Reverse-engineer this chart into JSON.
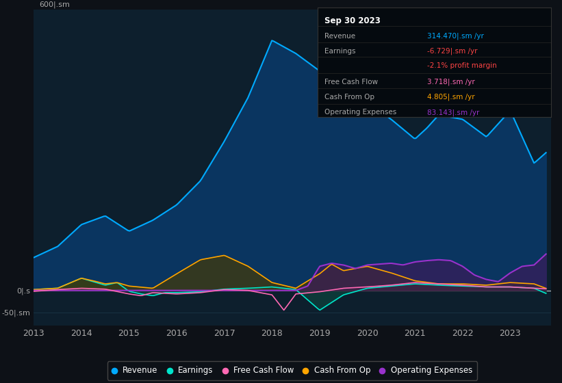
{
  "bg_color": "#0d1117",
  "plot_bg_color": "#0d1f2d",
  "grid_color": "#1e3a4a",
  "zero_line_color": "#cccccc",
  "revenue_color": "#00aaff",
  "earnings_color": "#00e5cc",
  "free_cash_flow_color": "#ff69b4",
  "cash_from_op_color": "#ffa500",
  "operating_expenses_color": "#9932cc",
  "revenue_fill": "#0a3a6a",
  "earnings_fill": "#0d4a40",
  "cash_from_op_fill": "#4a3a00",
  "operating_expenses_fill": "#3d1a5a",
  "tick_color": "#aaaaaa",
  "legend_items": [
    "Revenue",
    "Earnings",
    "Free Cash Flow",
    "Cash From Op",
    "Operating Expenses"
  ],
  "legend_colors": [
    "#00aaff",
    "#00e5cc",
    "#ff69b4",
    "#ffa500",
    "#9932cc"
  ],
  "info_box_title": "Sep 30 2023",
  "info_rows": [
    {
      "label": "Revenue",
      "value": "314.470|.sm /yr",
      "value_color": "#00aaff"
    },
    {
      "label": "Earnings",
      "value": "-6.729|.sm /yr",
      "value_color": "#ff4444"
    },
    {
      "label": "",
      "value": "-2.1% profit margin",
      "value_color": "#ff4444"
    },
    {
      "label": "Free Cash Flow",
      "value": "3.718|.sm /yr",
      "value_color": "#ff69b4"
    },
    {
      "label": "Cash From Op",
      "value": "4.805|.sm /yr",
      "value_color": "#ffa500"
    },
    {
      "label": "Operating Expenses",
      "value": "83.143|.sm /yr",
      "value_color": "#9932cc"
    }
  ]
}
